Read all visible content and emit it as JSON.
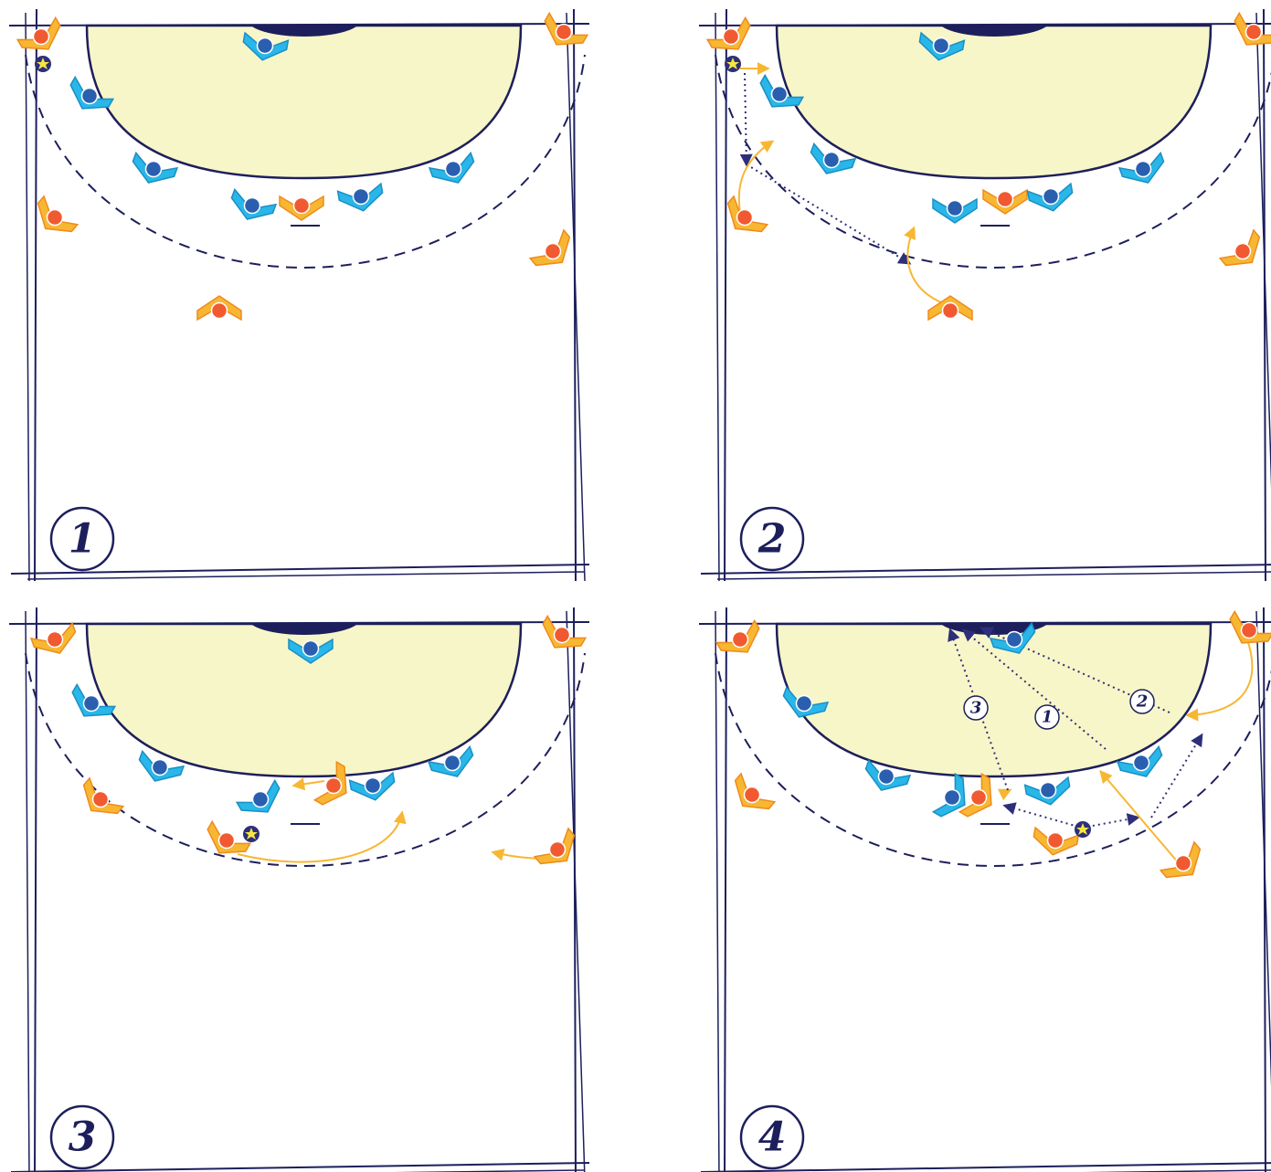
{
  "panels": [
    {
      "number": "1"
    },
    {
      "number": "2"
    },
    {
      "number": "3"
    },
    {
      "number": "4",
      "pass_labels": [
        "3",
        "1",
        "2"
      ]
    }
  ]
}
